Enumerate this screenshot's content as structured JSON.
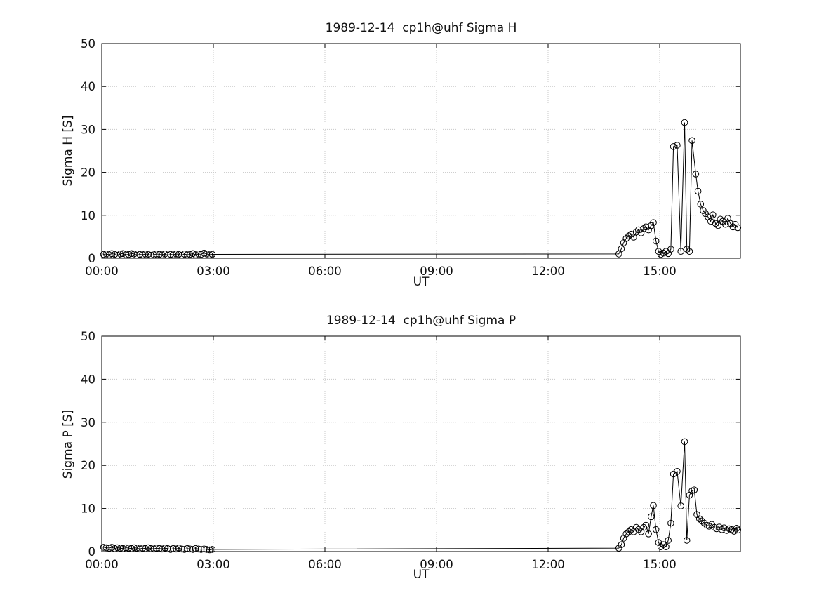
{
  "figure": {
    "background": "#ffffff",
    "axis_color": "#000000",
    "grid_color": "#c8c8c8",
    "text_color": "#111111"
  },
  "chart_data": [
    {
      "type": "line",
      "title": "1989-12-14  cp1h@uhf Sigma H",
      "xlabel": "UT",
      "ylabel": "Sigma H [S]",
      "xlim": [
        0,
        17.17
      ],
      "ylim": [
        0,
        50
      ],
      "xticks": [
        0,
        3,
        6,
        9,
        12,
        15
      ],
      "xtick_labels": [
        "00:00",
        "03:00",
        "06:00",
        "09:00",
        "12:00",
        "15:00"
      ],
      "yticks": [
        0,
        10,
        20,
        30,
        40,
        50
      ],
      "ytick_labels": [
        "0",
        "10",
        "20",
        "30",
        "40",
        "50"
      ],
      "grid": true,
      "legend": "none",
      "marker": "open-circle",
      "line_color": "#000000",
      "series": [
        {
          "name": "Sigma H",
          "points": [
            [
              0.05,
              0.9
            ],
            [
              0.12,
              1.0
            ],
            [
              0.2,
              0.8
            ],
            [
              0.27,
              1.1
            ],
            [
              0.35,
              0.9
            ],
            [
              0.42,
              0.7
            ],
            [
              0.5,
              1.0
            ],
            [
              0.57,
              1.1
            ],
            [
              0.65,
              0.8
            ],
            [
              0.72,
              0.9
            ],
            [
              0.8,
              1.1
            ],
            [
              0.87,
              1.0
            ],
            [
              0.95,
              0.7
            ],
            [
              1.02,
              0.9
            ],
            [
              1.1,
              0.8
            ],
            [
              1.17,
              1.0
            ],
            [
              1.25,
              0.9
            ],
            [
              1.32,
              0.7
            ],
            [
              1.4,
              0.8
            ],
            [
              1.47,
              1.0
            ],
            [
              1.55,
              0.9
            ],
            [
              1.62,
              0.8
            ],
            [
              1.7,
              1.0
            ],
            [
              1.77,
              0.7
            ],
            [
              1.85,
              0.9
            ],
            [
              1.92,
              0.8
            ],
            [
              2.0,
              1.0
            ],
            [
              2.07,
              0.9
            ],
            [
              2.15,
              0.7
            ],
            [
              2.22,
              1.0
            ],
            [
              2.3,
              0.8
            ],
            [
              2.37,
              0.9
            ],
            [
              2.45,
              1.1
            ],
            [
              2.52,
              0.8
            ],
            [
              2.6,
              1.0
            ],
            [
              2.67,
              0.9
            ],
            [
              2.75,
              1.2
            ],
            [
              2.82,
              1.0
            ],
            [
              2.9,
              0.8
            ],
            [
              2.97,
              0.9
            ],
            [
              13.9,
              1.0
            ],
            [
              13.97,
              2.2
            ],
            [
              14.03,
              3.6
            ],
            [
              14.1,
              4.6
            ],
            [
              14.17,
              5.2
            ],
            [
              14.23,
              5.6
            ],
            [
              14.3,
              4.9
            ],
            [
              14.37,
              6.1
            ],
            [
              14.43,
              6.6
            ],
            [
              14.5,
              5.9
            ],
            [
              14.57,
              6.9
            ],
            [
              14.63,
              7.3
            ],
            [
              14.7,
              6.6
            ],
            [
              14.77,
              7.6
            ],
            [
              14.83,
              8.3
            ],
            [
              14.9,
              4.0
            ],
            [
              14.97,
              1.6
            ],
            [
              15.03,
              0.9
            ],
            [
              15.1,
              1.2
            ],
            [
              15.17,
              1.6
            ],
            [
              15.23,
              1.1
            ],
            [
              15.3,
              2.1
            ],
            [
              15.37,
              26.0
            ],
            [
              15.47,
              26.3
            ],
            [
              15.57,
              1.6
            ],
            [
              15.67,
              31.6
            ],
            [
              15.73,
              2.1
            ],
            [
              15.8,
              1.6
            ],
            [
              15.87,
              27.4
            ],
            [
              15.97,
              19.6
            ],
            [
              16.03,
              15.6
            ],
            [
              16.1,
              12.6
            ],
            [
              16.17,
              11.1
            ],
            [
              16.23,
              10.4
            ],
            [
              16.3,
              9.6
            ],
            [
              16.37,
              8.6
            ],
            [
              16.43,
              10.1
            ],
            [
              16.5,
              8.1
            ],
            [
              16.57,
              7.6
            ],
            [
              16.63,
              9.1
            ],
            [
              16.7,
              8.6
            ],
            [
              16.77,
              7.9
            ],
            [
              16.83,
              9.3
            ],
            [
              16.9,
              8.1
            ],
            [
              16.97,
              7.3
            ],
            [
              17.03,
              7.9
            ],
            [
              17.1,
              7.1
            ]
          ]
        }
      ]
    },
    {
      "type": "line",
      "title": "1989-12-14  cp1h@uhf Sigma P",
      "xlabel": "UT",
      "ylabel": "Sigma P [S]",
      "xlim": [
        0,
        17.17
      ],
      "ylim": [
        0,
        50
      ],
      "xticks": [
        0,
        3,
        6,
        9,
        12,
        15
      ],
      "xtick_labels": [
        "00:00",
        "03:00",
        "06:00",
        "09:00",
        "12:00",
        "15:00"
      ],
      "yticks": [
        0,
        10,
        20,
        30,
        40,
        50
      ],
      "ytick_labels": [
        "0",
        "10",
        "20",
        "30",
        "40",
        "50"
      ],
      "grid": true,
      "legend": "none",
      "marker": "open-circle",
      "line_color": "#000000",
      "series": [
        {
          "name": "Sigma P",
          "points": [
            [
              0.05,
              1.0
            ],
            [
              0.12,
              0.9
            ],
            [
              0.2,
              0.8
            ],
            [
              0.27,
              1.0
            ],
            [
              0.35,
              0.7
            ],
            [
              0.42,
              0.9
            ],
            [
              0.5,
              0.8
            ],
            [
              0.57,
              0.7
            ],
            [
              0.65,
              0.9
            ],
            [
              0.72,
              0.8
            ],
            [
              0.8,
              0.7
            ],
            [
              0.87,
              0.9
            ],
            [
              0.95,
              0.8
            ],
            [
              1.02,
              0.6
            ],
            [
              1.1,
              0.8
            ],
            [
              1.17,
              0.7
            ],
            [
              1.25,
              0.9
            ],
            [
              1.32,
              0.7
            ],
            [
              1.4,
              0.6
            ],
            [
              1.47,
              0.8
            ],
            [
              1.55,
              0.7
            ],
            [
              1.62,
              0.6
            ],
            [
              1.7,
              0.8
            ],
            [
              1.77,
              0.7
            ],
            [
              1.85,
              0.5
            ],
            [
              1.92,
              0.7
            ],
            [
              2.0,
              0.6
            ],
            [
              2.07,
              0.8
            ],
            [
              2.15,
              0.6
            ],
            [
              2.22,
              0.5
            ],
            [
              2.3,
              0.7
            ],
            [
              2.37,
              0.6
            ],
            [
              2.45,
              0.5
            ],
            [
              2.52,
              0.7
            ],
            [
              2.6,
              0.6
            ],
            [
              2.67,
              0.5
            ],
            [
              2.75,
              0.6
            ],
            [
              2.82,
              0.5
            ],
            [
              2.9,
              0.4
            ],
            [
              2.97,
              0.5
            ],
            [
              13.9,
              0.8
            ],
            [
              13.97,
              1.6
            ],
            [
              14.03,
              3.1
            ],
            [
              14.1,
              4.1
            ],
            [
              14.17,
              4.6
            ],
            [
              14.23,
              5.1
            ],
            [
              14.3,
              4.6
            ],
            [
              14.37,
              5.6
            ],
            [
              14.43,
              5.1
            ],
            [
              14.5,
              4.6
            ],
            [
              14.57,
              5.6
            ],
            [
              14.63,
              6.1
            ],
            [
              14.7,
              4.1
            ],
            [
              14.77,
              8.1
            ],
            [
              14.83,
              10.7
            ],
            [
              14.9,
              5.1
            ],
            [
              14.97,
              2.1
            ],
            [
              15.03,
              1.1
            ],
            [
              15.1,
              1.6
            ],
            [
              15.17,
              1.1
            ],
            [
              15.23,
              2.6
            ],
            [
              15.3,
              6.6
            ],
            [
              15.37,
              18.0
            ],
            [
              15.47,
              18.6
            ],
            [
              15.57,
              10.6
            ],
            [
              15.67,
              25.5
            ],
            [
              15.73,
              2.6
            ],
            [
              15.8,
              13.1
            ],
            [
              15.87,
              14.1
            ],
            [
              15.93,
              14.3
            ],
            [
              16.0,
              8.6
            ],
            [
              16.07,
              7.6
            ],
            [
              16.13,
              7.1
            ],
            [
              16.2,
              6.6
            ],
            [
              16.27,
              6.1
            ],
            [
              16.33,
              5.9
            ],
            [
              16.4,
              6.3
            ],
            [
              16.47,
              5.6
            ],
            [
              16.53,
              5.3
            ],
            [
              16.6,
              5.7
            ],
            [
              16.67,
              5.1
            ],
            [
              16.73,
              5.5
            ],
            [
              16.8,
              4.9
            ],
            [
              16.87,
              5.3
            ],
            [
              16.93,
              5.1
            ],
            [
              17.0,
              4.7
            ],
            [
              17.07,
              5.4
            ],
            [
              17.1,
              5.0
            ]
          ]
        }
      ]
    }
  ]
}
